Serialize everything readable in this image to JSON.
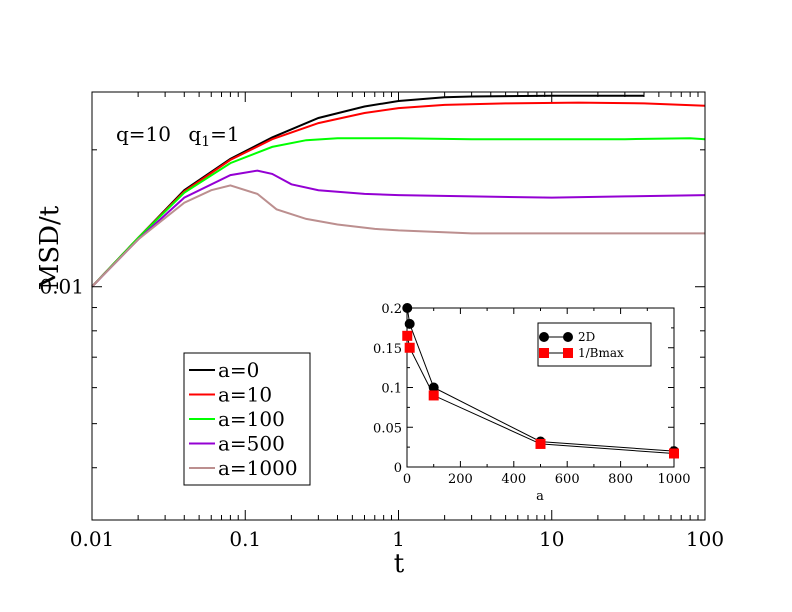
{
  "chart_data": [
    {
      "type": "line",
      "name": "main",
      "xscale": "log",
      "yscale": "log",
      "xlim": [
        0.01,
        100
      ],
      "ylim": [
        0.00307,
        0.0268
      ],
      "xlabel": "t",
      "ylabel": "MSD/t",
      "x_ticks": [
        {
          "value": 0.01,
          "label": "0.01"
        },
        {
          "value": 0.1,
          "label": "0.1"
        },
        {
          "value": 1,
          "label": "1"
        },
        {
          "value": 10,
          "label": "10"
        },
        {
          "value": 100,
          "label": "100"
        }
      ],
      "y_ticks": [
        {
          "value": 0.01,
          "label": "0.01"
        }
      ],
      "annotation": {
        "q_label": "q=10",
        "q1_label": "q",
        "q1_sub": "1",
        "q1_value": "=1"
      },
      "legend_position": "bottom-left",
      "series": [
        {
          "name": "a=0",
          "color": "#000000",
          "x": [
            0.01,
            0.02,
            0.04,
            0.08,
            0.15,
            0.3,
            0.6,
            1,
            2,
            3,
            10,
            40
          ],
          "y": [
            0.01,
            0.0128,
            0.0163,
            0.0191,
            0.0213,
            0.0235,
            0.0249,
            0.0256,
            0.0261,
            0.0262,
            0.0263,
            0.0263
          ]
        },
        {
          "name": "a=10",
          "color": "#ff0000",
          "x": [
            0.01,
            0.02,
            0.04,
            0.08,
            0.15,
            0.3,
            0.6,
            1,
            2,
            5,
            15,
            40,
            100
          ],
          "y": [
            0.01,
            0.0128,
            0.0162,
            0.019,
            0.0211,
            0.0229,
            0.0241,
            0.0247,
            0.0251,
            0.0253,
            0.0254,
            0.0253,
            0.025
          ]
        },
        {
          "name": "a=100",
          "color": "#00ff00",
          "x": [
            0.01,
            0.02,
            0.04,
            0.08,
            0.15,
            0.25,
            0.4,
            1,
            3,
            10,
            30,
            80,
            100
          ],
          "y": [
            0.01,
            0.0128,
            0.0161,
            0.0187,
            0.0203,
            0.021,
            0.0212,
            0.0212,
            0.0211,
            0.0211,
            0.0211,
            0.0212,
            0.0211
          ]
        },
        {
          "name": "a=500",
          "color": "#9400d3",
          "x": [
            0.01,
            0.02,
            0.04,
            0.08,
            0.12,
            0.15,
            0.2,
            0.3,
            0.6,
            1,
            3,
            10,
            30,
            100
          ],
          "y": [
            0.01,
            0.0127,
            0.0157,
            0.0176,
            0.018,
            0.0177,
            0.0168,
            0.0163,
            0.016,
            0.0159,
            0.0158,
            0.0157,
            0.0158,
            0.0159
          ]
        },
        {
          "name": "a=1000",
          "color": "#bc8f8f",
          "x": [
            0.01,
            0.02,
            0.04,
            0.06,
            0.08,
            0.12,
            0.16,
            0.25,
            0.4,
            0.7,
            1,
            3,
            10,
            100
          ],
          "y": [
            0.01,
            0.0127,
            0.0153,
            0.0163,
            0.0167,
            0.016,
            0.0148,
            0.0141,
            0.0137,
            0.0134,
            0.0133,
            0.0131,
            0.0131,
            0.0131
          ]
        }
      ]
    },
    {
      "type": "line",
      "name": "inset",
      "xlim": [
        0,
        1000
      ],
      "ylim": [
        0,
        0.2
      ],
      "xlabel": "a",
      "ylabel": "",
      "x_ticks": [
        {
          "value": 0,
          "label": "0"
        },
        {
          "value": 200,
          "label": "200"
        },
        {
          "value": 400,
          "label": "400"
        },
        {
          "value": 600,
          "label": "600"
        },
        {
          "value": 800,
          "label": "800"
        },
        {
          "value": 1000,
          "label": "1000"
        }
      ],
      "y_ticks": [
        {
          "value": 0,
          "label": "0"
        },
        {
          "value": 0.05,
          "label": "0.05"
        },
        {
          "value": 0.1,
          "label": "0.1"
        },
        {
          "value": 0.15,
          "label": "0.15"
        },
        {
          "value": 0.2,
          "label": "0.2"
        }
      ],
      "legend_position": "top-right",
      "series": [
        {
          "name": "2D",
          "color": "#000000",
          "marker": "circle",
          "x": [
            1,
            10,
            100,
            500,
            1000
          ],
          "y": [
            0.2,
            0.18,
            0.1,
            0.032,
            0.02
          ]
        },
        {
          "name": "1/Bmax",
          "color": "#ff0000",
          "marker": "square",
          "x": [
            1,
            10,
            100,
            500,
            1000
          ],
          "y": [
            0.165,
            0.15,
            0.09,
            0.029,
            0.017
          ]
        }
      ]
    }
  ]
}
